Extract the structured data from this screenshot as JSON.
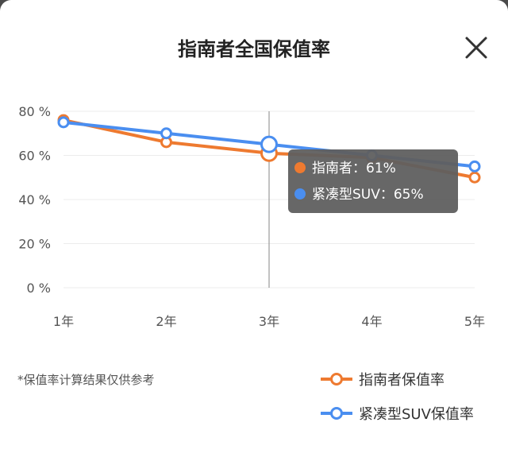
{
  "header": {
    "title": "指南者全国保值率"
  },
  "footnote": "*保值率计算结果仅供参考",
  "colors": {
    "series_1": "#ee7a30",
    "series_2": "#4a8ef0",
    "tooltip_bg": "#5f5f5f"
  },
  "icons": {
    "close": "close-icon"
  },
  "tooltip": {
    "category": "3年",
    "items": [
      {
        "label": "指南者：61%",
        "color": "#ee7a30"
      },
      {
        "label": "紧凑型SUV：65%",
        "color": "#4a8ef0"
      }
    ]
  },
  "chart_data": {
    "type": "line",
    "title": "指南者全国保值率",
    "categories": [
      "1年",
      "2年",
      "3年",
      "4年",
      "5年"
    ],
    "y_ticks": [
      "0 %",
      "20 %",
      "40 %",
      "60 %",
      "80 %"
    ],
    "ylim": [
      0,
      80
    ],
    "unit": "%",
    "grid": true,
    "legend_position": "bottom-right",
    "highlighted_category": "3年",
    "series": [
      {
        "name": "指南者保值率",
        "color": "#ee7a30",
        "values": [
          76,
          66,
          61,
          59,
          50
        ]
      },
      {
        "name": "紧凑型SUV保值率",
        "color": "#4a8ef0",
        "values": [
          75,
          70,
          65,
          60,
          55
        ]
      }
    ]
  }
}
